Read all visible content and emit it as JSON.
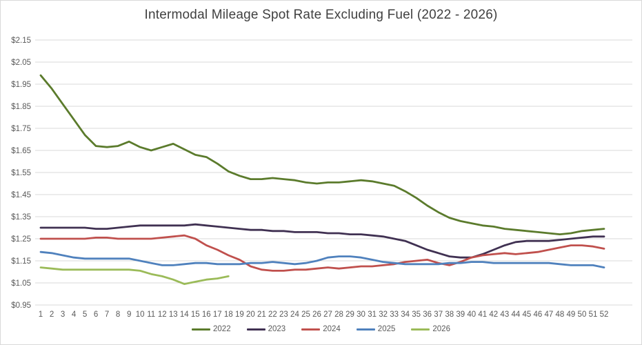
{
  "title": "Intermodal Mileage Spot Rate Excluding Fuel (2022 - 2026)",
  "colors": {
    "grid": "#d9d9d9",
    "axis_text": "#595959",
    "title_text": "#404040",
    "series_2022": "#5b7b2c",
    "series_2023": "#403152",
    "series_2024": "#c0504d",
    "series_2025": "#4f81bd",
    "series_2026": "#9bbb59"
  },
  "chart_data": {
    "type": "line",
    "title": "Intermodal Mileage Spot Rate Excluding Fuel (2022 - 2026)",
    "xlabel": "",
    "ylabel": "",
    "grid": true,
    "legend_position": "bottom",
    "x_label_unit": "week",
    "x": [
      1,
      2,
      3,
      4,
      5,
      6,
      7,
      8,
      9,
      10,
      11,
      12,
      13,
      14,
      15,
      16,
      17,
      18,
      19,
      20,
      21,
      22,
      23,
      24,
      25,
      26,
      27,
      28,
      29,
      30,
      31,
      32,
      33,
      34,
      35,
      36,
      37,
      38,
      39,
      40,
      41,
      42,
      43,
      44,
      45,
      46,
      47,
      48,
      49,
      50,
      51,
      52
    ],
    "xlim": [
      1,
      52
    ],
    "ylim": [
      0.95,
      2.15
    ],
    "y_ticks": [
      {
        "label": "$2.15",
        "value": 2.15
      },
      {
        "label": "$2.05",
        "value": 2.05
      },
      {
        "label": "$1.95",
        "value": 1.95
      },
      {
        "label": "$1.85",
        "value": 1.85
      },
      {
        "label": "$1.75",
        "value": 1.75
      },
      {
        "label": "$1.65",
        "value": 1.65
      },
      {
        "label": "$1.55",
        "value": 1.55
      },
      {
        "label": "$1.45",
        "value": 1.45
      },
      {
        "label": "$1.35",
        "value": 1.35
      },
      {
        "label": "$1.25",
        "value": 1.25
      },
      {
        "label": "$1.15",
        "value": 1.15
      },
      {
        "label": "$1.05",
        "value": 1.05
      },
      {
        "label": "$0.95",
        "value": 0.95
      }
    ],
    "series": [
      {
        "name": "2022",
        "color": "#5b7b2c",
        "values": [
          1.99,
          1.93,
          1.86,
          1.79,
          1.72,
          1.67,
          1.665,
          1.67,
          1.69,
          1.665,
          1.65,
          1.665,
          1.68,
          1.655,
          1.63,
          1.62,
          1.59,
          1.555,
          1.535,
          1.52,
          1.52,
          1.525,
          1.52,
          1.515,
          1.505,
          1.5,
          1.505,
          1.505,
          1.51,
          1.515,
          1.51,
          1.5,
          1.49,
          1.465,
          1.435,
          1.4,
          1.37,
          1.345,
          1.33,
          1.32,
          1.31,
          1.305,
          1.295,
          1.29,
          1.285,
          1.28,
          1.275,
          1.27,
          1.275,
          1.285,
          1.29,
          1.295
        ]
      },
      {
        "name": "2023",
        "color": "#403152",
        "values": [
          1.3,
          1.3,
          1.3,
          1.3,
          1.3,
          1.295,
          1.295,
          1.3,
          1.305,
          1.31,
          1.31,
          1.31,
          1.31,
          1.31,
          1.315,
          1.31,
          1.305,
          1.3,
          1.295,
          1.29,
          1.29,
          1.285,
          1.285,
          1.28,
          1.28,
          1.28,
          1.275,
          1.275,
          1.27,
          1.27,
          1.265,
          1.26,
          1.25,
          1.24,
          1.22,
          1.2,
          1.185,
          1.17,
          1.165,
          1.165,
          1.18,
          1.2,
          1.22,
          1.235,
          1.24,
          1.24,
          1.24,
          1.245,
          1.25,
          1.255,
          1.26,
          1.26
        ]
      },
      {
        "name": "2024",
        "color": "#c0504d",
        "values": [
          1.25,
          1.25,
          1.25,
          1.25,
          1.25,
          1.255,
          1.255,
          1.25,
          1.25,
          1.25,
          1.25,
          1.255,
          1.26,
          1.265,
          1.25,
          1.22,
          1.2,
          1.175,
          1.155,
          1.125,
          1.11,
          1.105,
          1.105,
          1.11,
          1.11,
          1.115,
          1.12,
          1.115,
          1.12,
          1.125,
          1.125,
          1.13,
          1.135,
          1.145,
          1.15,
          1.155,
          1.14,
          1.13,
          1.145,
          1.165,
          1.175,
          1.18,
          1.185,
          1.18,
          1.185,
          1.19,
          1.2,
          1.21,
          1.22,
          1.22,
          1.215,
          1.205
        ]
      },
      {
        "name": "2025",
        "color": "#4f81bd",
        "values": [
          1.19,
          1.185,
          1.175,
          1.165,
          1.16,
          1.16,
          1.16,
          1.16,
          1.16,
          1.15,
          1.14,
          1.13,
          1.13,
          1.135,
          1.14,
          1.14,
          1.135,
          1.135,
          1.135,
          1.14,
          1.14,
          1.145,
          1.14,
          1.135,
          1.14,
          1.15,
          1.165,
          1.17,
          1.17,
          1.165,
          1.155,
          1.145,
          1.14,
          1.135,
          1.135,
          1.135,
          1.135,
          1.14,
          1.14,
          1.145,
          1.145,
          1.14,
          1.14,
          1.14,
          1.14,
          1.14,
          1.14,
          1.135,
          1.13,
          1.13,
          1.13,
          1.12
        ]
      },
      {
        "name": "2026",
        "color": "#9bbb59",
        "values": [
          1.12,
          1.115,
          1.11,
          1.11,
          1.11,
          1.11,
          1.11,
          1.11,
          1.11,
          1.105,
          1.09,
          1.08,
          1.065,
          1.045,
          1.055,
          1.065,
          1.07,
          1.08
        ]
      }
    ]
  },
  "legend": {
    "items": [
      "2022",
      "2023",
      "2024",
      "2025",
      "2026"
    ]
  }
}
